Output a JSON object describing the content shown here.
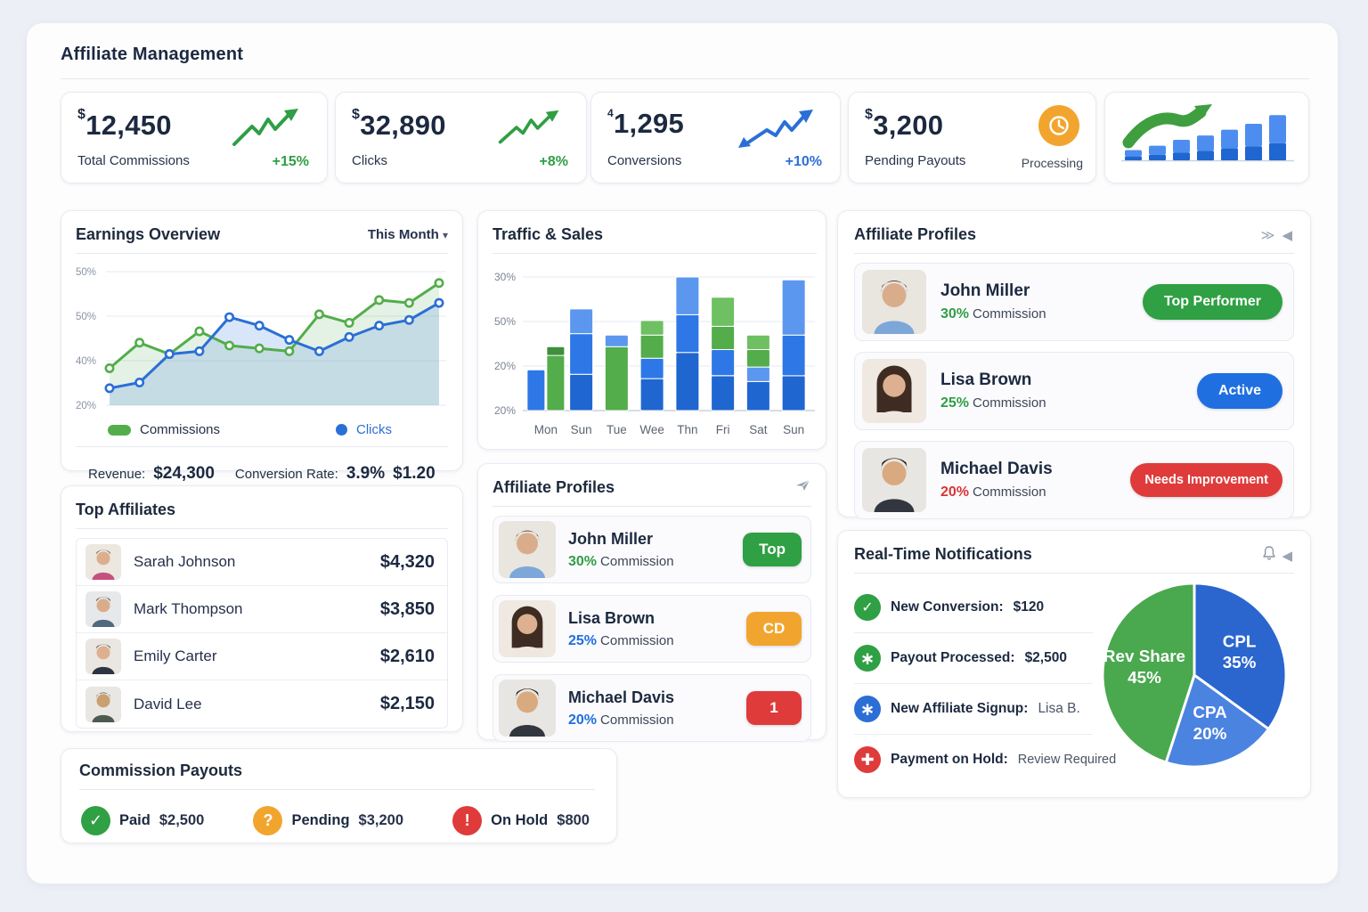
{
  "page": {
    "title": "Affiliate Management"
  },
  "colors": {
    "green": "#2f9e44",
    "blue": "#2b6fd6",
    "red": "#df3b3b",
    "orange": "#f2a52e",
    "navy": "#1c2940"
  },
  "stat_cards": [
    {
      "prefix": "$",
      "value": "12,450",
      "label": "Total Commissions",
      "delta": "+15%",
      "delta_color": "#2f9e44"
    },
    {
      "prefix": "$",
      "value": "32,890",
      "label": "Clicks",
      "delta": "+8%",
      "delta_color": "#2f9e44"
    },
    {
      "prefix": "4",
      "value": "1,295",
      "label": "Conversions",
      "delta": "+10%",
      "delta_color": "#2b6fd6"
    },
    {
      "prefix": "$",
      "value": "3,200",
      "label": "Pending Payouts",
      "status": "Processing",
      "icon": "clock-icon",
      "icon_color": "#f2a52e"
    }
  ],
  "earnings": {
    "title": "Earnings Overview",
    "range_label": "This Month",
    "legend": [
      {
        "label": "Commissions",
        "color": "#53ad4a"
      },
      {
        "label": "Clicks",
        "color": "#2b6fd6"
      }
    ],
    "footer": {
      "revenue_label": "Revenue:",
      "revenue": "$24,300",
      "cr_label": "Conversion Rate:",
      "cr": "3.9%",
      "epc": "$1.20"
    }
  },
  "traffic": {
    "title": "Traffic & Sales"
  },
  "profiles_right": {
    "title": "Affiliate Profiles",
    "rows": [
      {
        "name": "John Miller",
        "pct": "30%",
        "pct_color": "#2f9e44",
        "label": "Commission",
        "badge": "Top Performer",
        "badge_color": "#2fa043"
      },
      {
        "name": "Lisa Brown",
        "pct": "25%",
        "pct_color": "#2f9e44",
        "label": "Commission",
        "badge": "Active",
        "badge_color": "#1f6fe0"
      },
      {
        "name": "Michael Davis",
        "pct": "20%",
        "pct_color": "#d93434",
        "label": "Commission",
        "badge": "Needs Improvement",
        "badge_color": "#df3b3b"
      }
    ]
  },
  "top_affiliates": {
    "title": "Top Affiliates",
    "rows": [
      {
        "name": "Sarah Johnson",
        "amount": "$4,320"
      },
      {
        "name": "Mark Thompson",
        "amount": "$3,850"
      },
      {
        "name": "Emily Carter",
        "amount": "$2,610"
      },
      {
        "name": "David Lee",
        "amount": "$2,150"
      }
    ]
  },
  "profiles_mid": {
    "title": "Affiliate Profiles",
    "rows": [
      {
        "name": "John Miller",
        "pct": "30%",
        "pct_color": "#2f9e44",
        "label": "Commission",
        "badge": "Top",
        "badge_color": "#2fa043"
      },
      {
        "name": "Lisa Brown",
        "pct": "25%",
        "pct_color": "#1f6fe0",
        "label": "Commission",
        "badge": "CD",
        "badge_color": "#f2a52e"
      },
      {
        "name": "Michael Davis",
        "pct": "20%",
        "pct_color": "#1f6fe0",
        "label": "Commission",
        "badge": "1",
        "badge_color": "#df3b3b"
      }
    ]
  },
  "notifications": {
    "title": "Real-Time Notifications",
    "items": [
      {
        "icon": "check-icon",
        "icon_color": "#2fa043",
        "label": "New Conversion:",
        "value": "$120"
      },
      {
        "icon": "asterisk-icon",
        "icon_color": "#2fa043",
        "label": "Payout Processed:",
        "value": "$2,500"
      },
      {
        "icon": "asterisk-icon",
        "icon_color": "#2b6fd6",
        "label": "New Affiliate Signup:",
        "value": "Lisa B."
      },
      {
        "icon": "plus-icon",
        "icon_color": "#df3b3b",
        "label": "Payment on Hold:",
        "value": "Review Required"
      }
    ]
  },
  "payouts": {
    "title": "Commission Payouts",
    "items": [
      {
        "icon": "check-icon",
        "icon_color": "#2fa043",
        "label": "Paid",
        "value": "$2,500"
      },
      {
        "icon": "question-icon",
        "icon_color": "#f2a52e",
        "label": "Pending",
        "value": "$3,200"
      },
      {
        "icon": "exclamation-icon",
        "icon_color": "#df3b3b",
        "label": "On Hold",
        "value": "$800"
      }
    ]
  },
  "chart_data": [
    {
      "id": "earnings",
      "type": "line",
      "title": "Earnings Overview",
      "yticks": [
        "50%",
        "50%",
        "40%",
        "20%"
      ],
      "ylim": [
        15,
        62
      ],
      "grid": true,
      "legend_position": "bottom",
      "series": [
        {
          "name": "Commissions",
          "color": "#53ad4a",
          "fill": "rgba(116,190,120,0.20)",
          "values": [
            28,
            37,
            33,
            41,
            36,
            35,
            34,
            47,
            44,
            52,
            51,
            58
          ]
        },
        {
          "name": "Clicks",
          "color": "#2b6fd6",
          "fill": "rgba(120,165,235,0.28)",
          "values": [
            21,
            23,
            33,
            34,
            46,
            43,
            38,
            34,
            39,
            43,
            45,
            51
          ]
        }
      ]
    },
    {
      "id": "traffic",
      "type": "bar",
      "title": "Traffic & Sales",
      "stacked": true,
      "yticks": [
        "30%",
        "50%",
        "20%",
        "20%"
      ],
      "categories": [
        "Mon",
        "Sun",
        "Tue",
        "Wee",
        "Thn",
        "Fri",
        "Sat",
        "Sun"
      ],
      "bars": [
        {
          "label": "Mon",
          "columns": [
            [
              {
                "v": 28,
                "c": "#2e77e6"
              }
            ],
            [
              {
                "v": 38,
                "c": "#53ad4a"
              },
              {
                "v": 6,
                "c": "#3f8f3c"
              }
            ]
          ]
        },
        {
          "label": "Sun",
          "columns": [
            [
              {
                "v": 25,
                "c": "#1f66d0"
              },
              {
                "v": 28,
                "c": "#2e77e6"
              },
              {
                "v": 17,
                "c": "#5b97ef"
              }
            ]
          ]
        },
        {
          "label": "Tue",
          "columns": [
            [
              {
                "v": 44,
                "c": "#53ad4a"
              },
              {
                "v": 8,
                "c": "#5b97ef"
              }
            ]
          ]
        },
        {
          "label": "Wee",
          "columns": [
            [
              {
                "v": 22,
                "c": "#1f66d0"
              },
              {
                "v": 14,
                "c": "#2e77e6"
              },
              {
                "v": 16,
                "c": "#53ad4a"
              },
              {
                "v": 10,
                "c": "#6fbf63"
              }
            ]
          ]
        },
        {
          "label": "Thn",
          "columns": [
            [
              {
                "v": 40,
                "c": "#1f66d0"
              },
              {
                "v": 26,
                "c": "#2e77e6"
              },
              {
                "v": 26,
                "c": "#5b97ef"
              }
            ]
          ]
        },
        {
          "label": "Fri",
          "columns": [
            [
              {
                "v": 24,
                "c": "#1f66d0"
              },
              {
                "v": 18,
                "c": "#2e77e6"
              },
              {
                "v": 16,
                "c": "#53ad4a"
              },
              {
                "v": 20,
                "c": "#6fbf63"
              }
            ]
          ]
        },
        {
          "label": "Sat",
          "columns": [
            [
              {
                "v": 20,
                "c": "#1f66d0"
              },
              {
                "v": 10,
                "c": "#5b97ef"
              },
              {
                "v": 12,
                "c": "#53ad4a"
              },
              {
                "v": 10,
                "c": "#6fbf63"
              }
            ]
          ]
        },
        {
          "label": "Sun",
          "columns": [
            [
              {
                "v": 24,
                "c": "#1f66d0"
              },
              {
                "v": 28,
                "c": "#2e77e6"
              },
              {
                "v": 38,
                "c": "#5b97ef"
              }
            ]
          ]
        }
      ]
    },
    {
      "id": "payout_models",
      "type": "pie",
      "start_angle_deg": -90,
      "direction": "clockwise",
      "slices": [
        {
          "label": "CPL",
          "pct": 35,
          "color": "#2b66cf"
        },
        {
          "label": "CPA",
          "pct": 20,
          "color": "#4b83e0"
        },
        {
          "label": "Rev Share",
          "pct": 45,
          "color": "#4aa84e"
        }
      ]
    },
    {
      "id": "mini_trend",
      "type": "bar",
      "values": [
        14,
        20,
        28,
        34,
        42,
        50,
        62
      ],
      "colors": [
        "#4d8df0",
        "#1f66d0"
      ]
    }
  ]
}
